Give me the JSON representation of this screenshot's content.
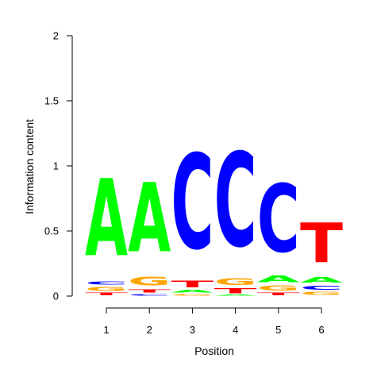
{
  "chart_data": {
    "type": "sequence-logo",
    "xlabel": "Position",
    "ylabel": "Information content",
    "ylim": [
      0,
      2
    ],
    "yticks": [
      0,
      0.5,
      1,
      1.5,
      2
    ],
    "ytick_labels": [
      "0",
      "0.5",
      "1",
      "1.5",
      "2"
    ],
    "xticks": [
      1,
      2,
      3,
      4,
      5,
      6
    ],
    "xtick_labels": [
      "1",
      "2",
      "3",
      "4",
      "5",
      "6"
    ],
    "colors": {
      "A": "#00ff00",
      "C": "#0000ff",
      "G": "#ffa500",
      "T": "#ff0000"
    },
    "positions": [
      {
        "position": 1,
        "stack": [
          {
            "letter": "T",
            "height": 0.03
          },
          {
            "letter": "G",
            "height": 0.05
          },
          {
            "letter": "C",
            "height": 0.04
          },
          {
            "letter": "A",
            "height": 0.95
          }
        ]
      },
      {
        "position": 2,
        "stack": [
          {
            "letter": "C",
            "height": 0.02
          },
          {
            "letter": "T",
            "height": 0.04
          },
          {
            "letter": "G",
            "height": 0.11
          },
          {
            "letter": "A",
            "height": 0.85
          }
        ]
      },
      {
        "position": 3,
        "stack": [
          {
            "letter": "G",
            "height": 0.02
          },
          {
            "letter": "A",
            "height": 0.03
          },
          {
            "letter": "T",
            "height": 0.08
          },
          {
            "letter": "C",
            "height": 1.17
          }
        ]
      },
      {
        "position": 4,
        "stack": [
          {
            "letter": "A",
            "height": 0.01
          },
          {
            "letter": "T",
            "height": 0.06
          },
          {
            "letter": "G",
            "height": 0.08
          },
          {
            "letter": "C",
            "height": 1.16
          }
        ]
      },
      {
        "position": 5,
        "stack": [
          {
            "letter": "T",
            "height": 0.03
          },
          {
            "letter": "G",
            "height": 0.06
          },
          {
            "letter": "A",
            "height": 0.08
          },
          {
            "letter": "C",
            "height": 0.84
          }
        ]
      },
      {
        "position": 6,
        "stack": [
          {
            "letter": "G",
            "height": 0.04
          },
          {
            "letter": "C",
            "height": 0.05
          },
          {
            "letter": "A",
            "height": 0.07
          },
          {
            "letter": "T",
            "height": 0.49
          }
        ]
      }
    ]
  }
}
